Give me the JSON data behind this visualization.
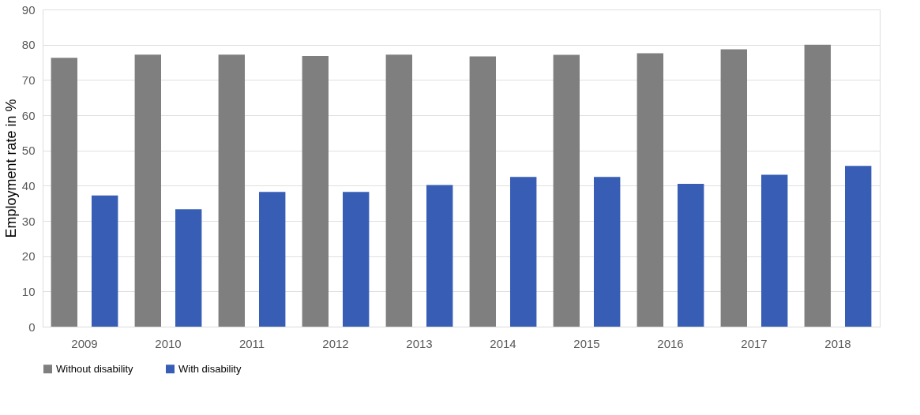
{
  "chart_data": {
    "type": "bar",
    "ylabel": "Employment rate in %",
    "categories": [
      "2009",
      "2010",
      "2011",
      "2012",
      "2013",
      "2014",
      "2015",
      "2016",
      "2017",
      "2018"
    ],
    "series": [
      {
        "name": "Without disability",
        "color": "#7f7f7f",
        "values": [
          76.3,
          77.2,
          77.2,
          76.8,
          77.2,
          76.7,
          77.1,
          77.6,
          78.7,
          80.0
        ]
      },
      {
        "name": "With disability",
        "color": "#375eb4",
        "values": [
          37.2,
          33.3,
          38.2,
          38.2,
          40.2,
          42.5,
          42.5,
          40.5,
          43.1,
          45.6
        ]
      }
    ],
    "ylim": [
      0,
      90
    ],
    "yticks": [
      0,
      10,
      20,
      30,
      40,
      50,
      60,
      70,
      80,
      90
    ],
    "grid": "y",
    "legend": "bottom"
  }
}
